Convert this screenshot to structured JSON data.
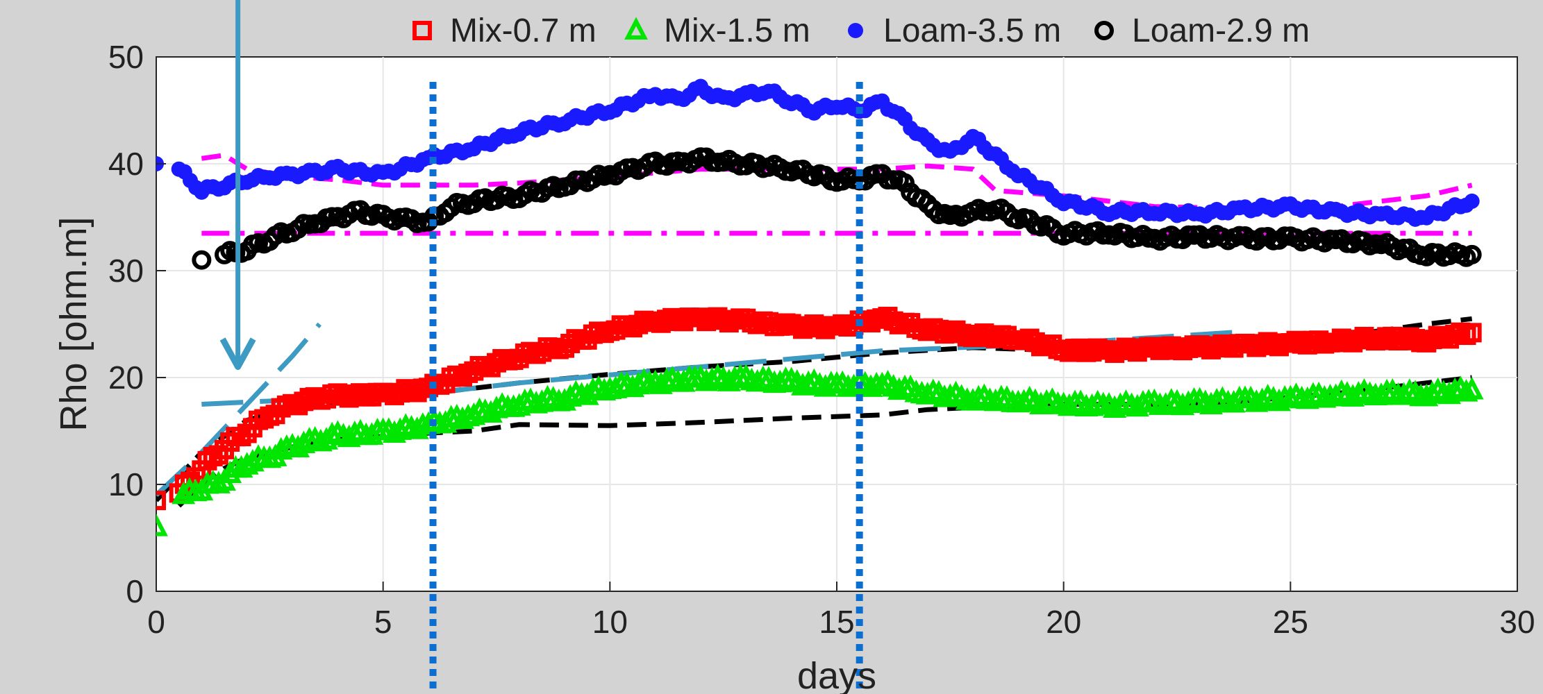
{
  "chart_data": {
    "type": "scatter",
    "title": "",
    "xlabel": "days",
    "ylabel": "Rho [ohm.m]",
    "xlim": [
      0,
      30
    ],
    "ylim": [
      0,
      50
    ],
    "xticks": [
      "0",
      "5",
      "10",
      "15",
      "20",
      "25",
      "30"
    ],
    "yticks": [
      "0",
      "10",
      "20",
      "30",
      "40",
      "50"
    ],
    "grid": true,
    "legend_position": "top",
    "legend": [
      {
        "label": "Mix-0.7 m",
        "marker": "square-open",
        "color": "#ff0000"
      },
      {
        "label": "Mix-1.5 m",
        "marker": "triangle-open",
        "color": "#00e600"
      },
      {
        "label": "Loam-3.5 m",
        "marker": "dot",
        "color": "#1a1aff"
      },
      {
        "label": "Loam-2.9 m",
        "marker": "circle-open",
        "color": "#000000"
      }
    ],
    "series": [
      {
        "name": "Mix-0.7 m",
        "color": "#ff0000",
        "x": [
          0,
          0.5,
          1,
          1.5,
          2,
          2.5,
          3,
          3.5,
          4,
          5,
          6,
          7,
          8,
          9,
          10,
          11,
          12,
          13,
          14,
          15,
          16,
          17,
          18,
          19,
          20,
          21,
          22,
          23,
          24,
          25,
          26,
          27,
          28,
          29
        ],
        "y": [
          8.5,
          9.2,
          11.5,
          13.5,
          15,
          16.5,
          17.5,
          18,
          18.3,
          18.4,
          19,
          20.7,
          22,
          23,
          24.5,
          25.3,
          25.5,
          25.3,
          24.8,
          24.7,
          25.6,
          24.5,
          24,
          23.7,
          22.6,
          22.5,
          22.7,
          22.8,
          23,
          23.2,
          23.4,
          23.7,
          23.5,
          24.2
        ]
      },
      {
        "name": "Mix-1.5 m",
        "color": "#00e600",
        "x": [
          0,
          0.6,
          1,
          1.5,
          2,
          2.5,
          3,
          3.5,
          4,
          5,
          6,
          7,
          8,
          9,
          10,
          11,
          12,
          13,
          14,
          15,
          16,
          17,
          18,
          19,
          20,
          21,
          22,
          23,
          24,
          25,
          26,
          27,
          28,
          29
        ],
        "y": [
          6,
          9,
          9.5,
          10.5,
          12,
          12.5,
          13.5,
          14,
          14.5,
          14.8,
          15.5,
          16.5,
          17.5,
          18,
          19,
          19.5,
          19.8,
          19.8,
          19.5,
          19.2,
          19.3,
          18.5,
          18,
          17.8,
          17.5,
          17.3,
          17.5,
          17.6,
          17.8,
          18,
          18.3,
          18.5,
          18.4,
          18.8
        ]
      },
      {
        "name": "Loam-3.5 m",
        "color": "#1a1aff",
        "x": [
          0,
          0.5,
          1,
          1.5,
          2,
          2.5,
          3,
          3.5,
          4,
          5,
          6,
          7,
          8,
          9,
          10,
          11,
          11.5,
          12,
          12.5,
          13,
          13.5,
          14,
          14.5,
          15,
          15.5,
          16,
          16.5,
          17,
          17.5,
          18,
          19,
          20,
          21,
          22,
          23,
          24,
          25,
          26,
          27,
          28,
          29
        ],
        "y": [
          40,
          39.5,
          37.5,
          38,
          38.5,
          38.8,
          39,
          39.2,
          39.5,
          39,
          40.5,
          41.5,
          43,
          44,
          45,
          46.5,
          46,
          47,
          46,
          46.5,
          46.8,
          45.8,
          45,
          45.5,
          45,
          45.8,
          44,
          42,
          41,
          42.5,
          39,
          36.5,
          35.5,
          35.5,
          35.3,
          35.8,
          36,
          35.5,
          35.2,
          35,
          36.5
        ]
      },
      {
        "name": "Loam-2.9 m",
        "color": "#000000",
        "x": [
          1,
          1.5,
          2,
          2.5,
          3,
          3.5,
          4,
          4.5,
          5,
          5.5,
          6,
          6.5,
          7,
          8,
          9,
          10,
          10.5,
          11,
          11.5,
          12,
          12.5,
          13,
          14,
          15,
          15.5,
          16,
          16.5,
          17,
          17.5,
          18,
          18.5,
          19,
          20,
          21,
          22,
          23,
          24,
          25,
          26,
          27,
          28,
          29
        ],
        "y": [
          31,
          31.5,
          32,
          33,
          33.8,
          34.5,
          35,
          35.5,
          35,
          34.8,
          34.5,
          36,
          36.5,
          37,
          38,
          39,
          39.5,
          40,
          40,
          40.5,
          40.2,
          40,
          39.5,
          38.5,
          38.5,
          39,
          38,
          36,
          35,
          35.5,
          35.8,
          35,
          33.5,
          33.5,
          33,
          33.2,
          33,
          33,
          32.8,
          32.5,
          31.5,
          31.5
        ]
      }
    ],
    "model_lines": [
      {
        "style": "dashed",
        "color": "#000000",
        "x": [
          0,
          1,
          2,
          3,
          4,
          5,
          6,
          7,
          8,
          10,
          12,
          14,
          16,
          18,
          20,
          22,
          24,
          26,
          28,
          29
        ],
        "y": [
          8.5,
          13,
          16,
          17.2,
          17.8,
          18.2,
          18.5,
          19,
          19.5,
          20.3,
          21,
          21.5,
          22.3,
          22.8,
          22.5,
          23,
          23.3,
          23.8,
          25,
          25.5
        ]
      },
      {
        "style": "dashed",
        "color": "#000000",
        "x": [
          0.5,
          1,
          1.5,
          2,
          3,
          4,
          5,
          6,
          7,
          8,
          10,
          12,
          14,
          16,
          17,
          18,
          19,
          20,
          22,
          24,
          26,
          28,
          29
        ],
        "y": [
          8,
          10,
          11.5,
          12.5,
          13.5,
          14.2,
          14.5,
          14.8,
          15,
          15.6,
          15.5,
          15.8,
          16.2,
          16.5,
          17,
          17.2,
          17,
          17.5,
          17.5,
          17.8,
          18.5,
          19.5,
          20
        ]
      },
      {
        "style": "dashed",
        "color": "#ff00ff",
        "x": [
          1,
          1.5,
          2,
          3,
          4,
          5,
          6,
          7,
          8,
          10,
          12,
          14,
          16,
          17,
          18,
          18.5,
          20,
          22,
          24,
          26,
          28,
          29
        ],
        "y": [
          40.5,
          40.8,
          39.5,
          38.8,
          38.5,
          38,
          38,
          38,
          38.2,
          38.8,
          39.5,
          39.5,
          39.5,
          39.8,
          39.5,
          37.5,
          37,
          36,
          35.8,
          36,
          37,
          38
        ]
      },
      {
        "style": "dash-dot",
        "color": "#ff00ff",
        "x": [
          1,
          29
        ],
        "y": [
          33.5,
          33.5
        ]
      },
      {
        "style": "long-dashed",
        "color": "#3d9ac2",
        "x": [
          1,
          6,
          8,
          12,
          16,
          20,
          24
        ],
        "y": [
          17.5,
          18.5,
          19.5,
          21,
          22.5,
          23.2,
          24.3
        ]
      },
      {
        "style": "long-dashed",
        "color": "#3d9ac2",
        "x": [
          0,
          1,
          2,
          3,
          3.6
        ],
        "y": [
          9,
          13,
          17.5,
          22,
          25
        ]
      }
    ],
    "vertical_markers": [
      6.1,
      15.5
    ],
    "annotation_arrow": {
      "x": 1.8,
      "y_top": 53,
      "y_bottom": 21,
      "color": "#3d9ac2"
    }
  }
}
